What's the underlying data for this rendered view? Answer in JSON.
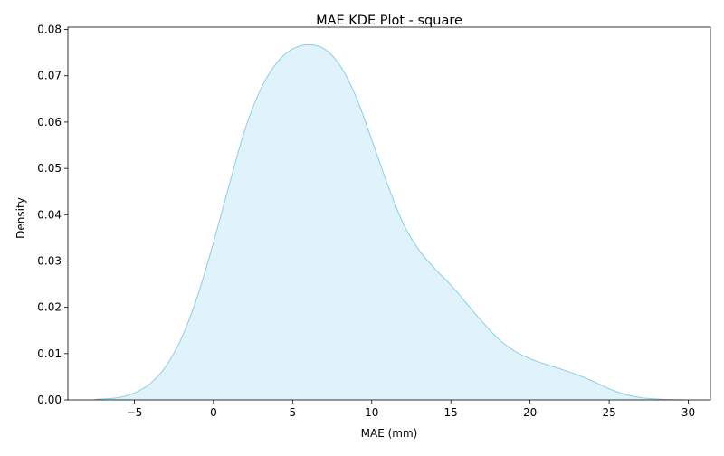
{
  "chart_data": {
    "type": "area",
    "title": "MAE KDE Plot - square",
    "xlabel": "MAE (mm)",
    "ylabel": "Density",
    "xlim": [
      -9.2,
      31.4
    ],
    "ylim": [
      0,
      0.0805
    ],
    "xticks": [
      -5,
      0,
      5,
      10,
      15,
      20,
      25,
      30
    ],
    "xtick_labels": [
      "−5",
      "0",
      "5",
      "10",
      "15",
      "20",
      "25",
      "30"
    ],
    "yticks": [
      0,
      0.01,
      0.02,
      0.03,
      0.04,
      0.05,
      0.06,
      0.07,
      0.08
    ],
    "ytick_labels": [
      "0.00",
      "0.01",
      "0.02",
      "0.03",
      "0.04",
      "0.05",
      "0.06",
      "0.07",
      "0.08"
    ],
    "grid": false,
    "line_color": "#87ceeb",
    "fill_color": "#87ceeb",
    "fill_alpha": 0.25,
    "x": [
      -7.5,
      -6,
      -5,
      -4,
      -3,
      -2,
      -1,
      0,
      1,
      2,
      3,
      4,
      5,
      6,
      7,
      8,
      9,
      10,
      11,
      12,
      13,
      14,
      15,
      16,
      17,
      18,
      19,
      20,
      21,
      22,
      23,
      24,
      25,
      26,
      27,
      28,
      29,
      29.7
    ],
    "y": [
      0.0001,
      0.0005,
      0.0015,
      0.0035,
      0.0073,
      0.0135,
      0.0225,
      0.034,
      0.0465,
      0.0585,
      0.0672,
      0.0728,
      0.0758,
      0.0767,
      0.0758,
      0.0722,
      0.0655,
      0.0562,
      0.0465,
      0.038,
      0.0323,
      0.0283,
      0.0248,
      0.0208,
      0.0168,
      0.0132,
      0.0106,
      0.0089,
      0.0077,
      0.0066,
      0.0054,
      0.004,
      0.0024,
      0.0012,
      0.0005,
      0.0002,
      5e-05,
      2e-05
    ]
  }
}
